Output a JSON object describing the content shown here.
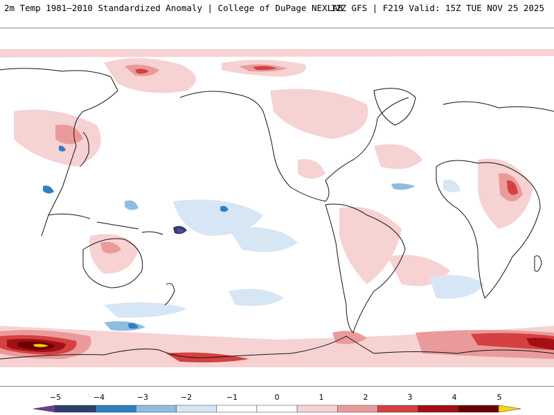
{
  "header": {
    "left_title": "2m Temp 1981–2010 Standardized Anomaly | College of DuPage NEXLAB",
    "right_title": "12Z GFS | F219 Valid: 15Z TUE NOV 25 2025"
  },
  "map": {
    "projection": "Pacific-centered global",
    "colors": {
      "neg5": "#6a3d9a",
      "neg4": "#2c3e6b",
      "neg3": "#2f7fc1",
      "neg2": "#8fbde0",
      "neg1": "#d6e6f4",
      "zero": "#ffffff",
      "pos1": "#f6d2d2",
      "pos2": "#ea9a9a",
      "pos3": "#d54040",
      "pos4": "#a30f15",
      "pos5": "#6b0000",
      "extreme": "#ffd700",
      "coast": "#111111"
    }
  },
  "colorbar": {
    "labels": [
      "−5",
      "−4",
      "−3",
      "−2",
      "−1",
      "0",
      "1",
      "2",
      "3",
      "4",
      "5"
    ],
    "colors": [
      "#6a3d9a",
      "#2c3e6b",
      "#2f7fc1",
      "#8fbde0",
      "#d6e6f4",
      "#ffffff",
      "#ffffff",
      "#f6d2d2",
      "#ea9a9a",
      "#d54040",
      "#a30f15",
      "#6b0000",
      "#ffd700"
    ]
  }
}
